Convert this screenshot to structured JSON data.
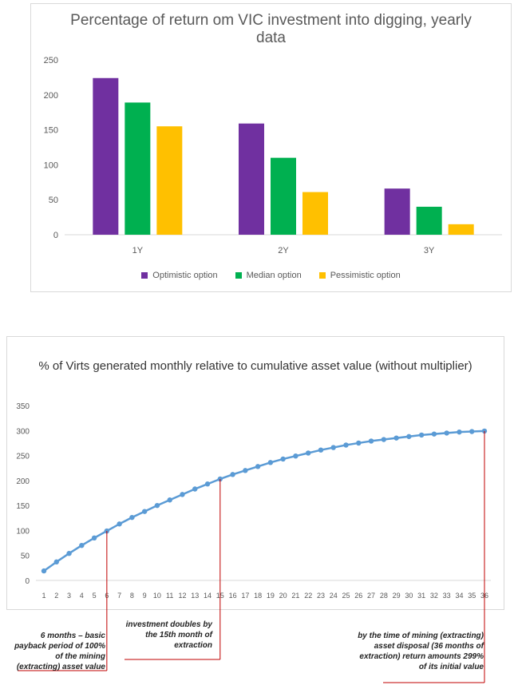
{
  "chart_data": [
    {
      "type": "bar",
      "title": "Percentage of return om VIC investment into digging, yearly data",
      "categories": [
        "1Y",
        "2Y",
        "3Y"
      ],
      "series": [
        {
          "name": "Optimistic option",
          "color": "#7030a0",
          "values": [
            224,
            159,
            66
          ]
        },
        {
          "name": "Median option",
          "color": "#00b050",
          "values": [
            189,
            110,
            40
          ]
        },
        {
          "name": "Pessimistic option",
          "color": "#ffc000",
          "values": [
            155,
            61,
            15
          ]
        }
      ],
      "ylim": [
        0,
        250
      ],
      "yticks": [
        "0",
        "50",
        "100",
        "150",
        "200",
        "250"
      ],
      "grid": false,
      "legend_position": "bottom"
    },
    {
      "type": "line",
      "title": "% of Virts generated monthly relative to cumulative asset value (without multiplier)",
      "x": [
        1,
        2,
        3,
        4,
        5,
        6,
        7,
        8,
        9,
        10,
        11,
        12,
        13,
        14,
        15,
        16,
        17,
        18,
        19,
        20,
        21,
        22,
        23,
        24,
        25,
        26,
        27,
        28,
        29,
        30,
        31,
        32,
        33,
        34,
        35,
        36
      ],
      "xticks": [
        "1",
        "2",
        "3",
        "4",
        "5",
        "6",
        "7",
        "8",
        "9",
        "10",
        "11",
        "12",
        "13",
        "14",
        "15",
        "16",
        "17",
        "18",
        "19",
        "20",
        "21",
        "22",
        "23",
        "24",
        "25",
        "26",
        "27",
        "28",
        "29",
        "30",
        "31",
        "32",
        "33",
        "34",
        "35",
        "36"
      ],
      "series": [
        {
          "color": "#5b9bd5",
          "values": [
            19,
            37,
            54,
            70,
            85,
            99,
            113,
            126,
            138,
            150,
            161,
            172,
            183,
            193,
            203,
            212,
            220,
            228,
            236,
            243,
            249,
            255,
            261,
            266,
            271,
            275,
            279,
            282,
            285,
            288,
            291,
            293,
            295,
            297,
            298,
            299
          ]
        }
      ],
      "ylim": [
        0,
        350
      ],
      "yticks": [
        "0",
        "50",
        "100",
        "150",
        "200",
        "250",
        "300",
        "350"
      ],
      "grid": false,
      "legend_position": "none",
      "annotations": [
        {
          "x": 6,
          "text": "6 months – basic payback period of 100% of the mining (extracting) asset value"
        },
        {
          "x": 15,
          "text": "investment doubles by the 15th month of extraction"
        },
        {
          "x": 36,
          "text": "by the time of mining (extracting) asset disposal (36 months of extraction) return amounts 299% of its initial value"
        }
      ]
    }
  ]
}
